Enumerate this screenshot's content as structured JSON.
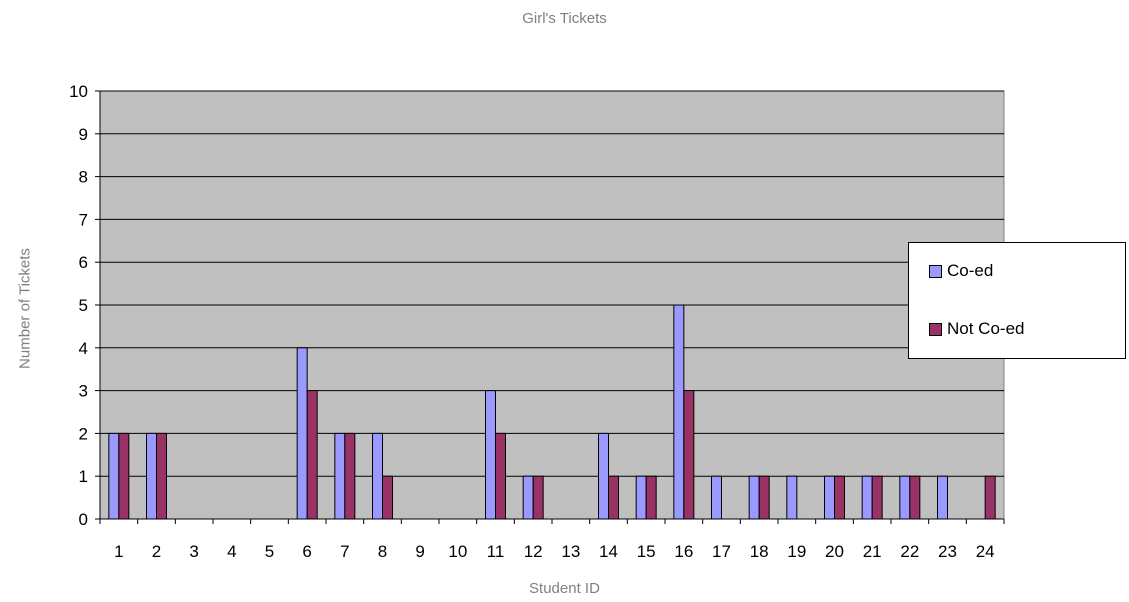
{
  "chart_data": {
    "type": "bar",
    "title": "Girl's Tickets",
    "xlabel": "Student ID",
    "ylabel": "Number of Tickets",
    "categories": [
      "1",
      "2",
      "3",
      "4",
      "5",
      "6",
      "7",
      "8",
      "9",
      "10",
      "11",
      "12",
      "13",
      "14",
      "15",
      "16",
      "17",
      "18",
      "19",
      "20",
      "21",
      "22",
      "23",
      "24"
    ],
    "ylim": [
      0,
      10
    ],
    "yticks": [
      "0",
      "1",
      "2",
      "3",
      "4",
      "5",
      "6",
      "7",
      "8",
      "9",
      "10"
    ],
    "grid": true,
    "legend_position": "right",
    "plot_background": "#c0c0c0",
    "series": [
      {
        "name": "Co-ed",
        "color": "#9999ff",
        "values": [
          2,
          2,
          0,
          0,
          0,
          4,
          2,
          2,
          0,
          0,
          3,
          1,
          0,
          2,
          1,
          5,
          1,
          1,
          1,
          1,
          1,
          1,
          1,
          0
        ]
      },
      {
        "name": "Not Co-ed",
        "color": "#993366",
        "values": [
          2,
          2,
          0,
          0,
          0,
          3,
          2,
          1,
          0,
          0,
          2,
          1,
          0,
          1,
          1,
          3,
          0,
          1,
          0,
          1,
          1,
          1,
          0,
          1
        ]
      }
    ]
  }
}
